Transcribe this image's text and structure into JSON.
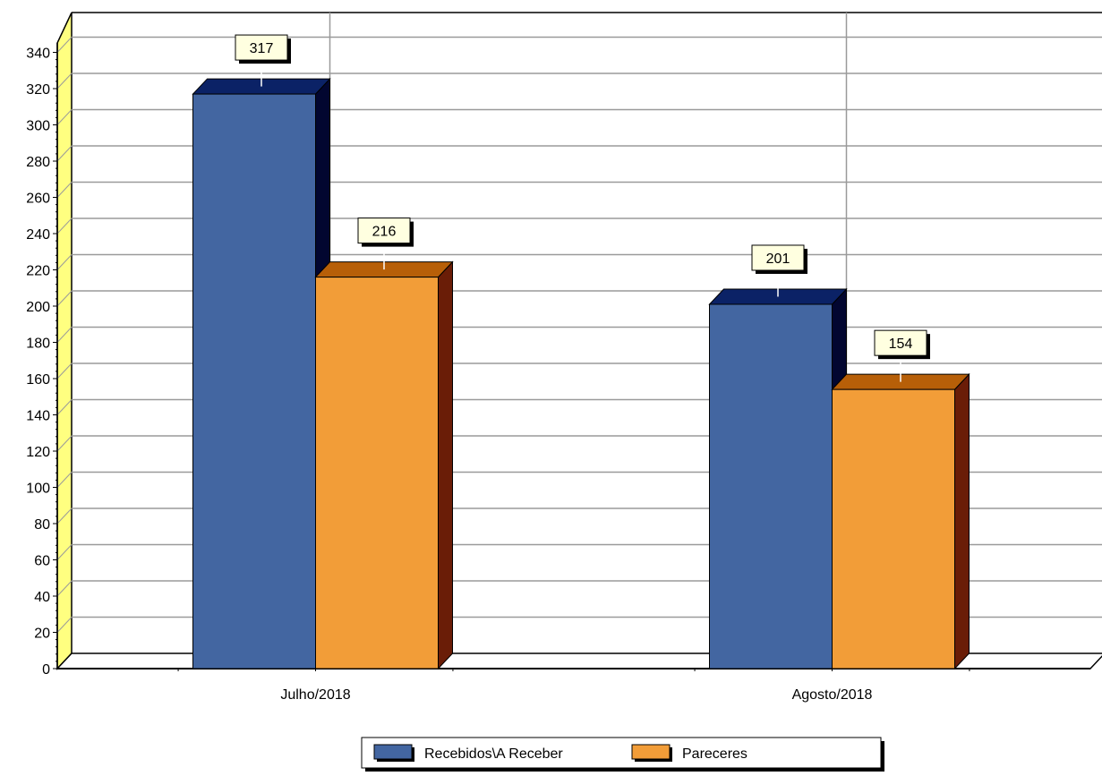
{
  "chart_data": {
    "type": "bar",
    "categories": [
      "Julho/2018",
      "Agosto/2018"
    ],
    "series": [
      {
        "name": "Recebidos\\A Receber",
        "values": [
          317,
          201
        ],
        "color": "#4366A1"
      },
      {
        "name": "Pareceres",
        "values": [
          216,
          154
        ],
        "color": "#F29D38"
      }
    ],
    "data_labels": [
      [
        "317",
        "216"
      ],
      [
        "201",
        "154"
      ]
    ],
    "y_ticks": [
      "0",
      "20",
      "40",
      "60",
      "80",
      "100",
      "120",
      "140",
      "160",
      "180",
      "200",
      "220",
      "240",
      "260",
      "280",
      "300",
      "320",
      "340"
    ],
    "ylim": [
      0,
      360
    ],
    "grid": true,
    "legend_position": "bottom-center",
    "title": "",
    "xlabel": "",
    "ylabel": ""
  }
}
